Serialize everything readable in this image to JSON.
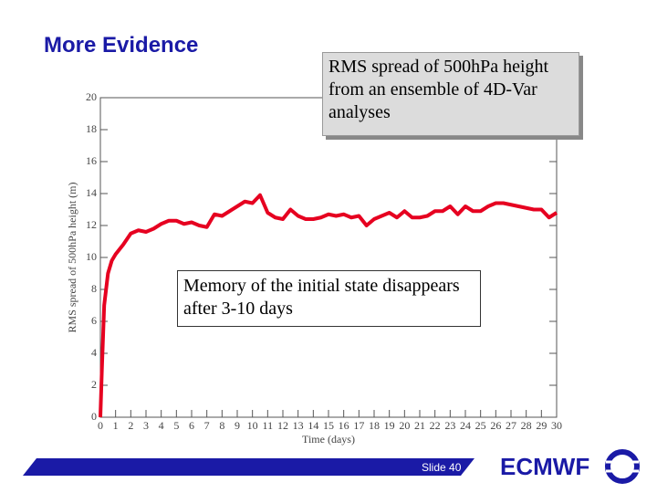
{
  "header": {
    "title": "More Evidence"
  },
  "chart_data": {
    "type": "line",
    "x_label": "Time (days)",
    "y_label": "RMS spread of 500hPa height (m)",
    "annotations": [
      "RMS spread of 500hPa height from an ensemble of 4D-Var analyses",
      "Memory of the initial state disappears after 3-10 days"
    ],
    "x": [
      0,
      0.1,
      0.25,
      0.5,
      0.75,
      1,
      1.5,
      2,
      2.5,
      3,
      3.5,
      4,
      4.5,
      5,
      5.5,
      6,
      6.5,
      7,
      7.5,
      8,
      8.5,
      9,
      9.5,
      10,
      10.5,
      11,
      11.5,
      12,
      12.5,
      13,
      13.5,
      14,
      14.5,
      15,
      15.5,
      16,
      16.5,
      17,
      17.5,
      18,
      18.5,
      19,
      19.5,
      20,
      20.5,
      21,
      21.5,
      22,
      22.5,
      23,
      23.5,
      24,
      24.5,
      25,
      25.5,
      26,
      26.5,
      27,
      27.5,
      28,
      28.5,
      29,
      29.5,
      30
    ],
    "values": [
      0,
      3,
      7,
      9,
      9.8,
      10.2,
      10.8,
      11.5,
      11.7,
      11.6,
      11.8,
      12.1,
      12.3,
      12.3,
      12.1,
      12.2,
      12.0,
      11.9,
      12.7,
      12.6,
      12.9,
      13.2,
      13.5,
      13.4,
      13.9,
      12.8,
      12.5,
      12.4,
      13.0,
      12.6,
      12.4,
      12.4,
      12.5,
      12.7,
      12.6,
      12.7,
      12.5,
      12.6,
      12.0,
      12.4,
      12.6,
      12.8,
      12.5,
      12.9,
      12.5,
      12.5,
      12.6,
      12.9,
      12.9,
      13.2,
      12.7,
      13.2,
      12.9,
      12.9,
      13.2,
      13.4,
      13.4,
      13.3,
      13.2,
      13.1,
      13.0,
      13.0,
      12.5,
      12.8
    ],
    "color": "#e60020",
    "xlim": [
      0,
      30
    ],
    "xticks": [
      0,
      1,
      2,
      3,
      4,
      5,
      6,
      7,
      8,
      9,
      10,
      11,
      12,
      13,
      14,
      15,
      16,
      17,
      18,
      19,
      20,
      21,
      22,
      23,
      24,
      25,
      26,
      27,
      28,
      29,
      30
    ],
    "ylim": [
      0,
      20
    ],
    "yticks": [
      0,
      2,
      4,
      6,
      8,
      10,
      12,
      14,
      16,
      18,
      20
    ]
  },
  "footer": {
    "slide": "Slide 40",
    "logo": "ECMWF"
  }
}
